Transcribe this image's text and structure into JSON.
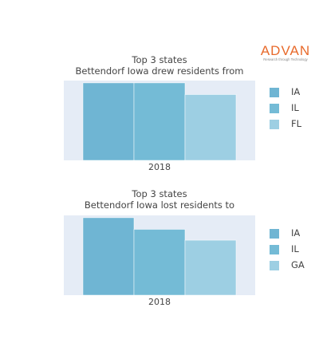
{
  "logo": {
    "name": "ADVAN",
    "tagline": "Research through Technology",
    "color": "#e86a2b"
  },
  "colors": {
    "plot_bg": "#e5ecf6",
    "series": [
      "#6fb5d3",
      "#74bbd6",
      "#9dcfe3"
    ]
  },
  "charts": [
    {
      "title_line1": "Top 3 states",
      "title_line2": "Bettendorf Iowa drew residents from",
      "xtick": "2018"
    },
    {
      "title_line1": "Top 3 states",
      "title_line2": "Bettendorf Iowa lost residents to",
      "xtick": "2018"
    }
  ],
  "chart_data": [
    {
      "type": "bar",
      "title": "Top 3 states Bettendorf Iowa drew residents from",
      "categories": [
        "2018"
      ],
      "series": [
        {
          "name": "IA",
          "values": [
            100
          ]
        },
        {
          "name": "IL",
          "values": [
            100
          ]
        },
        {
          "name": "FL",
          "values": [
            85
          ]
        }
      ],
      "ylim": [
        0,
        103
      ],
      "grid": false,
      "legend": "right"
    },
    {
      "type": "bar",
      "title": "Top 3 states Bettendorf Iowa lost residents to",
      "categories": [
        "2018"
      ],
      "series": [
        {
          "name": "IA",
          "values": [
            100
          ]
        },
        {
          "name": "IL",
          "values": [
            85
          ]
        },
        {
          "name": "GA",
          "values": [
            71
          ]
        }
      ],
      "ylim": [
        0,
        103
      ],
      "grid": false,
      "legend": "right"
    }
  ]
}
